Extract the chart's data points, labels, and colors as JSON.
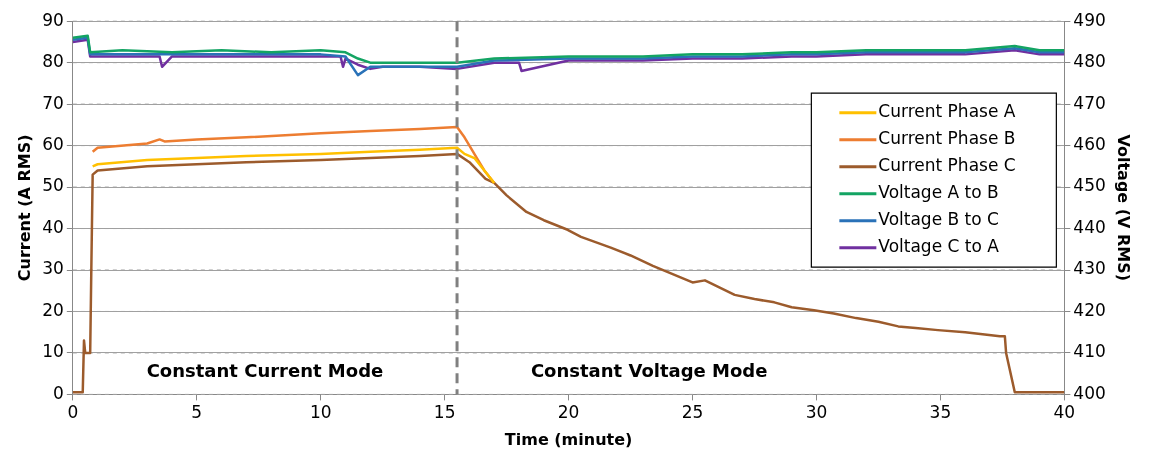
{
  "chart_data": {
    "type": "line",
    "xlabel": "Time (minute)",
    "ylabel": "Current (A RMS)",
    "y2label": "Voltage (V RMS)",
    "xlim": [
      0,
      40
    ],
    "xticks": [
      0,
      5,
      10,
      15,
      20,
      25,
      30,
      35,
      40
    ],
    "ylim": [
      0,
      90
    ],
    "yticks": [
      0,
      10,
      20,
      30,
      40,
      50,
      60,
      70,
      80,
      90
    ],
    "y2lim": [
      400,
      490
    ],
    "y2ticks": [
      400,
      410,
      420,
      430,
      440,
      450,
      460,
      470,
      480,
      490
    ],
    "grid": "y",
    "legend": "right",
    "marker": "none",
    "line_style": "solid",
    "ref_lines": [
      {
        "axis": "x",
        "value": 15.5,
        "color": "#808080",
        "line_style": "dashed"
      }
    ],
    "annotations": [
      "Constant Current Mode",
      "Constant Voltage Mode"
    ],
    "series": [
      {
        "name": "Current Phase A",
        "color": "#ffc000",
        "x": [
          0.8,
          1,
          3,
          5,
          7,
          10,
          12,
          14,
          15.5,
          15.8,
          16.2,
          16.6,
          17
        ],
        "values": [
          55,
          55.5,
          56.5,
          57,
          57.5,
          58,
          58.5,
          59,
          59.5,
          58,
          57,
          54,
          51
        ]
      },
      {
        "name": "Current Phase B",
        "color": "#ed7d31",
        "x": [
          0.8,
          1,
          3,
          3.5,
          3.7,
          5,
          7,
          10,
          12,
          14,
          15.5,
          15.8,
          16,
          16.3,
          16.6,
          17
        ],
        "values": [
          58.5,
          59.5,
          60.5,
          61.5,
          61,
          61.5,
          62,
          63,
          63.5,
          64,
          64.5,
          62,
          60,
          57,
          54,
          51
        ]
      },
      {
        "name": "Current Phase C",
        "color": "#9c5b2c",
        "x": [
          0,
          0.4,
          0.45,
          0.5,
          0.7,
          0.75,
          0.8,
          1,
          3,
          5,
          7,
          10,
          12,
          14,
          15.5,
          16,
          16.65,
          17,
          17.5,
          18.3,
          19,
          19.96,
          20.5,
          21.7,
          22.5,
          23.4,
          24.2,
          25,
          25.5,
          26.7,
          27.5,
          28.3,
          29,
          29.9,
          30.7,
          31.6,
          32.5,
          33.3,
          34,
          34.9,
          36,
          37.4,
          37.6,
          37.65,
          38,
          40
        ],
        "values": [
          0.5,
          0.5,
          13,
          10,
          10,
          32,
          53,
          54,
          55,
          55.5,
          56,
          56.5,
          57,
          57.5,
          58,
          56,
          52,
          51,
          48,
          44,
          42,
          39.7,
          38,
          35.4,
          33.5,
          31,
          29,
          27,
          27.5,
          24,
          23,
          22.2,
          21,
          20.3,
          19.5,
          18.4,
          17.5,
          16.4,
          16,
          15.5,
          15,
          14,
          14,
          10,
          0.5,
          0.5
        ]
      },
      {
        "name": "Voltage A to B",
        "color": "#13a463",
        "axis": "y2",
        "x": [
          0,
          0.6,
          0.7,
          2,
          4,
          6,
          8,
          10,
          11,
          11.5,
          12,
          14,
          15.5,
          17,
          20,
          23,
          25,
          27,
          29,
          30,
          32,
          34,
          36,
          38,
          39,
          40
        ],
        "values": [
          486,
          486.5,
          482.5,
          483,
          482.5,
          483,
          482.5,
          483,
          482.5,
          481,
          480,
          480,
          480,
          481,
          481.5,
          481.5,
          482,
          482,
          482.5,
          482.5,
          483,
          483,
          483,
          484,
          483,
          483
        ]
      },
      {
        "name": "Voltage B to C",
        "color": "#2a72b8",
        "axis": "y2",
        "x": [
          0,
          0.6,
          0.7,
          2,
          4,
          6,
          8,
          10,
          11,
          11.5,
          12,
          14,
          15.5,
          17,
          20,
          23,
          25,
          27,
          29,
          30,
          32,
          34,
          36,
          38,
          39,
          40
        ],
        "values": [
          485.5,
          486,
          482,
          482,
          482,
          482,
          482,
          482,
          481.5,
          477,
          479,
          479,
          479,
          480.5,
          481,
          481,
          481.5,
          481.5,
          482,
          482,
          482.5,
          482.5,
          482.5,
          483.5,
          482.5,
          482.5
        ]
      },
      {
        "name": "Voltage C to A",
        "color": "#7030a0",
        "axis": "y2",
        "x": [
          0,
          0.6,
          0.7,
          2,
          3.5,
          3.6,
          4,
          6,
          8,
          10,
          10.8,
          10.9,
          11,
          11.5,
          12,
          12.5,
          14,
          15.5,
          17,
          18,
          18.1,
          20,
          23,
          25,
          27,
          29,
          30,
          32,
          34,
          36,
          38,
          39,
          40
        ],
        "values": [
          485,
          485.5,
          481.5,
          481.5,
          481.5,
          479,
          481.5,
          481.5,
          481.5,
          481.5,
          481.5,
          479,
          481,
          479.5,
          478.5,
          479,
          479,
          478.5,
          480,
          480,
          478,
          480.5,
          480.5,
          481,
          481,
          481.5,
          481.5,
          482,
          482,
          482,
          483,
          482,
          482
        ]
      }
    ]
  }
}
